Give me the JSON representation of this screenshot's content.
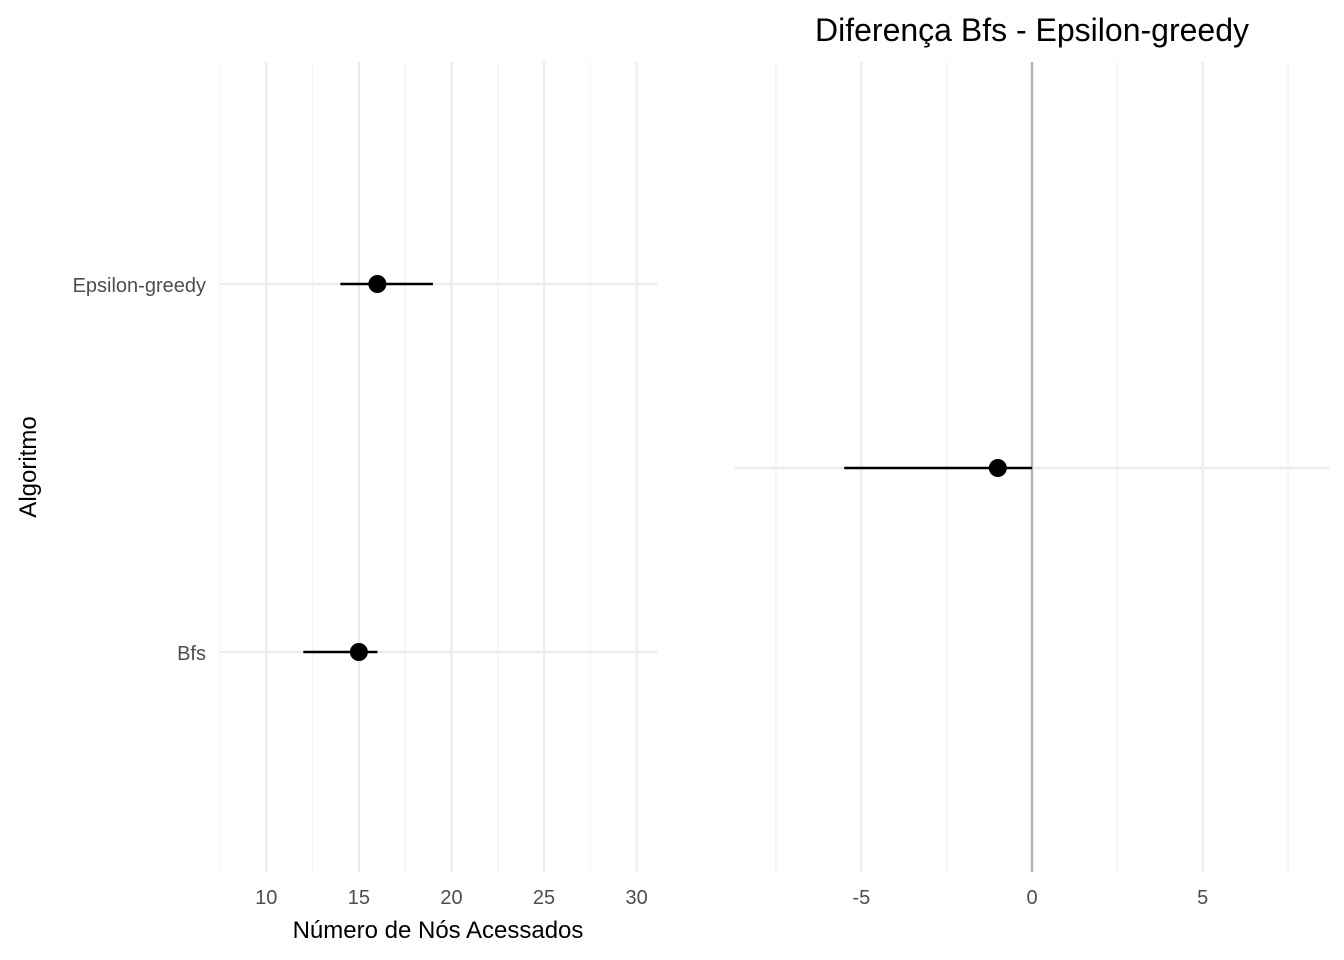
{
  "chart_data": [
    {
      "type": "scatter",
      "subtype": "point-range",
      "title": "",
      "xlabel": "Número de Nós Acessados",
      "ylabel": "Algoritmo",
      "categories": [
        "Epsilon-greedy",
        "Bfs"
      ],
      "points": [
        {
          "category": "Epsilon-greedy",
          "estimate": 16,
          "lower": 14,
          "upper": 19
        },
        {
          "category": "Bfs",
          "estimate": 15,
          "lower": 12,
          "upper": 16
        }
      ],
      "xlim": [
        7.5,
        31.1
      ],
      "xticks": [
        10,
        15,
        20,
        25,
        30
      ],
      "grid": true
    },
    {
      "type": "scatter",
      "subtype": "point-range",
      "title": "Diferença Bfs - Epsilon-greedy",
      "xlabel": "",
      "ylabel": "",
      "points": [
        {
          "estimate": -1,
          "lower": -5.5,
          "upper": 0
        }
      ],
      "reference_line": 0,
      "xlim": [
        -8.7,
        8.7
      ],
      "xticks": [
        -5,
        0,
        5
      ],
      "grid": true
    }
  ]
}
